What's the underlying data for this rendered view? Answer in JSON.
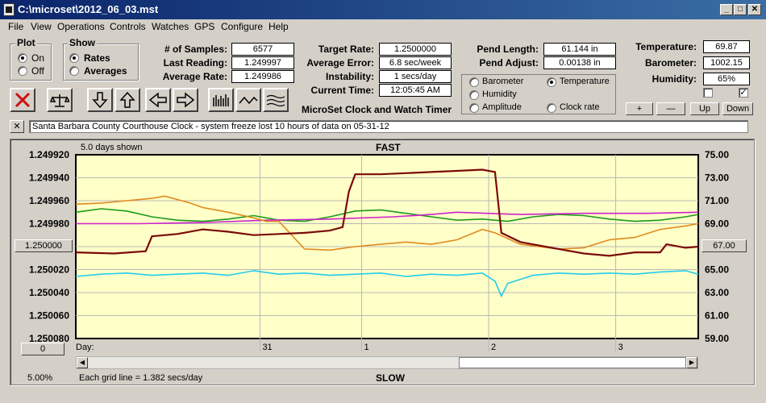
{
  "window": {
    "title": "C:\\microset\\2012_06_03.mst"
  },
  "menu": [
    "File",
    "View",
    "Operations",
    "Controls",
    "Watches",
    "GPS",
    "Configure",
    "Help"
  ],
  "plot_group": {
    "title": "Plot",
    "on": "On",
    "off": "Off"
  },
  "show_group": {
    "title": "Show",
    "rates": "Rates",
    "averages": "Averages"
  },
  "stats": {
    "samples_label": "# of Samples:",
    "samples": "6577",
    "last_label": "Last Reading:",
    "last": "1.249997",
    "avg_label": "Average Rate:",
    "avg": "1.249986"
  },
  "rates": {
    "target_label": "Target Rate:",
    "target": "1.2500000",
    "avgerr_label": "Average Error:",
    "avgerr": "6.8 sec/week",
    "instab_label": "Instability:",
    "instab": "1 secs/day",
    "time_label": "Current Time:",
    "time": "12:05:45 AM"
  },
  "pend": {
    "length_label": "Pend Length:",
    "length": "61.144 in",
    "adjust_label": "Pend Adjust:",
    "adjust": "0.00138 in"
  },
  "env": {
    "temp_label": "Temperature:",
    "temp": "69.87",
    "baro_label": "Barometer:",
    "baro": "1002.15",
    "hum_label": "Humidity:",
    "hum": "65%"
  },
  "series_select": {
    "barometer": "Barometer",
    "temperature": "Temperature",
    "humidity": "Humidity",
    "amplitude": "Amplitude",
    "clockrate": "Clock rate"
  },
  "colors": {
    "barometer": "#e08a1e",
    "temperature": "#1a9a1a",
    "humidity": "#cc22cc",
    "amplitude": "#22ccee",
    "clockrate": "#7a0a0a"
  },
  "app_caption": "MicroSet Clock and Watch Timer",
  "plus_minus": {
    "plus": "+",
    "minus": "—",
    "up": "Up",
    "down": "Down"
  },
  "checkbox_right": "✓",
  "note_close": "✕",
  "note": "Santa Barbara County Courthouse Clock - system freeze lost 10 hours of data on 05-31-12",
  "toolbar_icons": [
    "stop-icon",
    "scale-icon",
    "arrow-down-icon",
    "arrow-up-icon",
    "arrow-left-icon",
    "arrow-right-icon",
    "bar-plot-icon",
    "wave-icon",
    "multiwave-icon"
  ],
  "chart_header": {
    "days_shown": "5.0 days shown",
    "fast": "FAST",
    "slow": "SLOW"
  },
  "chart_footer": {
    "percent": "5.00%",
    "grid_note": "Each grid line = 1.382 secs/day",
    "day_label": "Day:"
  },
  "left_axis_button": "1.250000",
  "right_axis_button": "67.00",
  "zero_button": "0",
  "chart_data": {
    "type": "line",
    "title": "FAST",
    "xlabel": "Day:",
    "x_ticks": [
      "31",
      "1",
      "2",
      "3"
    ],
    "x_tick_pos": [
      1.45,
      2.25,
      3.25,
      4.25
    ],
    "xlim": [
      0,
      4.9
    ],
    "y_left_ticks": [
      "1.249920",
      "1.249940",
      "1.249960",
      "1.249980",
      "1.250000",
      "1.250020",
      "1.250040",
      "1.250060",
      "1.250080"
    ],
    "y_left_lim": [
      1.24992,
      1.25008
    ],
    "y_right_ticks": [
      "75.00",
      "73.00",
      "71.00",
      "69.00",
      "67.00",
      "65.00",
      "63.00",
      "61.00",
      "59.00"
    ],
    "y_right_lim": [
      59,
      75
    ],
    "grid": true,
    "series": [
      {
        "name": "Temperature",
        "axis": "right",
        "x": [
          0,
          0.2,
          0.4,
          0.6,
          0.8,
          1.0,
          1.2,
          1.4,
          1.6,
          1.8,
          2.0,
          2.2,
          2.4,
          2.6,
          2.8,
          3.0,
          3.2,
          3.4,
          3.6,
          3.8,
          4.0,
          4.2,
          4.4,
          4.6,
          4.8,
          4.9
        ],
        "values": [
          70.0,
          70.3,
          70.1,
          69.6,
          69.3,
          69.2,
          69.4,
          69.7,
          69.3,
          69.2,
          69.6,
          70.1,
          70.2,
          69.9,
          69.6,
          69.3,
          69.4,
          69.2,
          69.6,
          69.8,
          69.7,
          69.4,
          69.2,
          69.3,
          69.6,
          69.8
        ]
      },
      {
        "name": "Humidity",
        "axis": "right",
        "x": [
          0,
          0.5,
          1.0,
          1.5,
          2.0,
          2.5,
          2.8,
          3.0,
          3.5,
          4.0,
          4.5,
          4.9
        ],
        "values": [
          69.0,
          69.0,
          69.1,
          69.3,
          69.4,
          69.6,
          69.8,
          70.0,
          69.8,
          69.9,
          69.9,
          70.0
        ]
      },
      {
        "name": "Barometer",
        "axis": "left",
        "x": [
          0,
          0.2,
          0.4,
          0.6,
          0.7,
          0.9,
          1.0,
          1.2,
          1.4,
          1.5,
          1.6,
          1.8,
          2.0,
          2.2,
          2.4,
          2.6,
          2.8,
          3.0,
          3.2,
          3.3,
          3.5,
          3.8,
          4.0,
          4.2,
          4.4,
          4.6,
          4.8,
          4.9
        ],
        "values": [
          1.249963,
          1.249962,
          1.24996,
          1.249958,
          1.249956,
          1.249962,
          1.249966,
          1.24997,
          1.249975,
          1.249978,
          1.249978,
          1.250002,
          1.250003,
          1.25,
          1.249998,
          1.249996,
          1.249998,
          1.249994,
          1.249985,
          1.249988,
          1.249998,
          1.250002,
          1.250001,
          1.249994,
          1.249992,
          1.249985,
          1.249982,
          1.24998
        ]
      },
      {
        "name": "Clock rate",
        "axis": "left",
        "x": [
          0,
          0.3,
          0.55,
          0.6,
          0.8,
          1.0,
          1.2,
          1.4,
          1.6,
          1.8,
          2.0,
          2.1,
          2.15,
          2.2,
          2.4,
          2.6,
          2.8,
          3.0,
          3.2,
          3.3,
          3.35,
          3.5,
          3.8,
          4.0,
          4.2,
          4.4,
          4.6,
          4.65,
          4.8,
          4.9
        ],
        "values": [
          1.250005,
          1.250006,
          1.250004,
          1.249991,
          1.249989,
          1.249985,
          1.249987,
          1.24999,
          1.249989,
          1.249988,
          1.249986,
          1.249983,
          1.249952,
          1.249937,
          1.249937,
          1.249936,
          1.249935,
          1.249934,
          1.249933,
          1.249935,
          1.249988,
          1.249996,
          1.250002,
          1.250006,
          1.250008,
          1.250005,
          1.250005,
          1.249998,
          1.250001,
          1.25
        ]
      },
      {
        "name": "Amplitude",
        "axis": "right",
        "x": [
          0,
          0.2,
          0.4,
          0.6,
          0.8,
          1.0,
          1.2,
          1.4,
          1.6,
          1.8,
          2.0,
          2.2,
          2.4,
          2.6,
          2.8,
          3.0,
          3.2,
          3.3,
          3.35,
          3.4,
          3.6,
          3.8,
          4.0,
          4.2,
          4.4,
          4.6,
          4.8,
          4.9
        ],
        "values": [
          64.4,
          64.6,
          64.7,
          64.5,
          64.6,
          64.7,
          64.5,
          64.9,
          64.6,
          64.7,
          64.5,
          64.6,
          64.7,
          64.4,
          64.6,
          64.5,
          64.7,
          64.0,
          62.7,
          63.8,
          64.5,
          64.7,
          64.6,
          64.7,
          64.6,
          64.8,
          64.9,
          64.6
        ]
      }
    ]
  }
}
